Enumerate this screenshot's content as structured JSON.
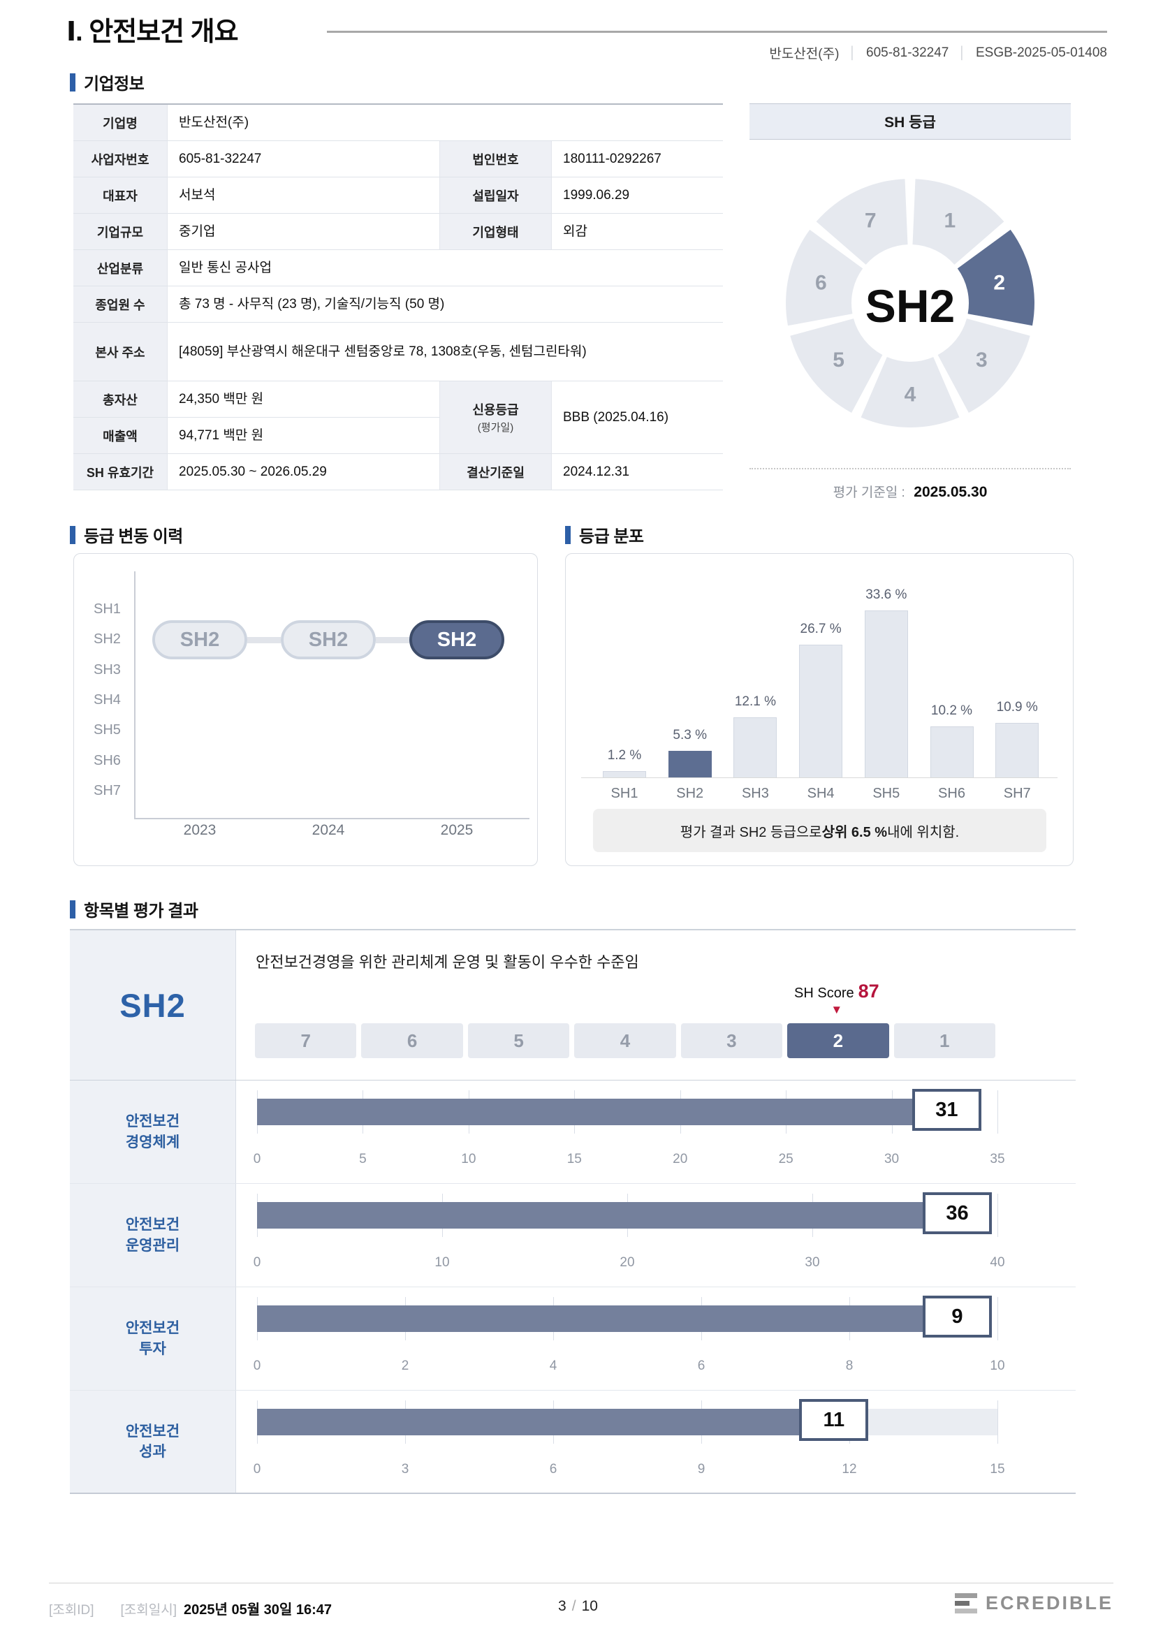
{
  "header": {
    "title": "Ⅰ. 안전보건 개요",
    "company": "반도산전(주)",
    "business_no": "605-81-32247",
    "report_code": "ESGB-2025-05-01408"
  },
  "colors": {
    "accent_blue": "#2d5fa7",
    "selected_slate": "#5d6e92",
    "bar_slate": "#74809c",
    "light_segment": "#e6e9ef",
    "score_red": "#b5143c",
    "label_cell_bg": "#eef1f6"
  },
  "company_info": {
    "section_title": "기업정보",
    "fields": {
      "company_name_label": "기업명",
      "company_name": "반도산전(주)",
      "biz_no_label": "사업자번호",
      "biz_no": "605-81-32247",
      "corp_no_label": "법인번호",
      "corp_no": "180111-0292267",
      "ceo_label": "대표자",
      "ceo": "서보석",
      "founded_label": "설립일자",
      "founded": "1999.06.29",
      "size_label": "기업규모",
      "size": "중기업",
      "type_label": "기업형태",
      "type": "외감",
      "industry_label": "산업분류",
      "industry": "일반 통신 공사업",
      "employees_label": "종업원 수",
      "employees": "총 73 명 -  사무직 (23 명), 기술직/기능직 (50 명)",
      "address_label": "본사 주소",
      "address": "[48059] 부산광역시 해운대구 센텀중앙로 78, 1308호(우동, 센텀그린타워)",
      "assets_label": "총자산",
      "assets": "24,350 백만 원",
      "revenue_label": "매출액",
      "revenue": "94,771 백만 원",
      "credit_label": "신용등급",
      "credit_sub_label": "(평가일)",
      "credit": "BBB (2025.04.16)",
      "validity_label": "SH 유효기간",
      "validity": "2025.05.30 ~ 2026.05.29",
      "fiscal_label": "결산기준일",
      "fiscal": "2024.12.31"
    }
  },
  "sh_grade_panel": {
    "title": "SH 등급",
    "center_label": "SH2",
    "selected": "2",
    "segments": [
      "1",
      "2",
      "3",
      "4",
      "5",
      "6",
      "7"
    ],
    "base_date_label": "평가 기준일 :",
    "base_date": "2025.05.30"
  },
  "history": {
    "section_title": "등급 변동 이력",
    "y_labels": [
      "SH1",
      "SH2",
      "SH3",
      "SH4",
      "SH5",
      "SH6",
      "SH7"
    ],
    "years": [
      "2023",
      "2024",
      "2025"
    ],
    "grades": [
      "SH2",
      "SH2",
      "SH2"
    ],
    "selected_index": 2
  },
  "distribution": {
    "section_title": "등급 분포",
    "categories": [
      "SH1",
      "SH2",
      "SH3",
      "SH4",
      "SH5",
      "SH6",
      "SH7"
    ],
    "values": [
      1.2,
      5.3,
      12.1,
      26.7,
      33.6,
      10.2,
      10.9
    ],
    "highlight": "SH2",
    "note_prefix": "평가 결과 SH2 등급으로 ",
    "note_bold": "상위 6.5 %",
    "note_suffix": " 내에 위치함."
  },
  "evaluation": {
    "section_title": "항목별 평가 결과",
    "grade": "SH2",
    "summary": "안전보건경영을 위한 관리체계 운영 및 활동이 우수한 수준임",
    "score_label": "SH Score",
    "score": "87",
    "scale": [
      "7",
      "6",
      "5",
      "4",
      "3",
      "2",
      "1"
    ],
    "selected": "2",
    "items": [
      {
        "label_line1": "안전보건",
        "label_line2": "경영체계",
        "value": 31,
        "max": 35,
        "ticks": [
          0,
          5,
          10,
          15,
          20,
          25,
          30,
          35
        ]
      },
      {
        "label_line1": "안전보건",
        "label_line2": "운영관리",
        "value": 36,
        "max": 40,
        "ticks": [
          0,
          10,
          20,
          30,
          40
        ]
      },
      {
        "label_line1": "안전보건",
        "label_line2": "투자",
        "value": 9,
        "max": 10,
        "ticks": [
          0,
          2,
          4,
          6,
          8,
          10
        ]
      },
      {
        "label_line1": "안전보건",
        "label_line2": "성과",
        "value": 11,
        "max": 15,
        "ticks": [
          0,
          3,
          6,
          9,
          12,
          15
        ]
      }
    ]
  },
  "footer": {
    "query_id_label": "[조회ID]",
    "query_time_label": "[조회일시]",
    "query_time": "2025년 05월 30일 16:47",
    "page_current": "3",
    "page_total": "10",
    "brand": "ECREDIBLE"
  },
  "chart_data": [
    {
      "type": "pie",
      "title": "SH 등급",
      "labels": [
        "1",
        "2",
        "3",
        "4",
        "5",
        "6",
        "7"
      ],
      "values": [
        1,
        1,
        1,
        1,
        1,
        1,
        1
      ],
      "highlight": "2",
      "center_label": "SH2",
      "note": "평가 기준일 : 2025.05.30"
    },
    {
      "type": "line",
      "title": "등급 변동 이력",
      "x": [
        "2023",
        "2024",
        "2025"
      ],
      "y": [
        "SH2",
        "SH2",
        "SH2"
      ],
      "y_axis": [
        "SH1",
        "SH2",
        "SH3",
        "SH4",
        "SH5",
        "SH6",
        "SH7"
      ],
      "highlight_x": "2025"
    },
    {
      "type": "bar",
      "title": "등급 분포",
      "categories": [
        "SH1",
        "SH2",
        "SH3",
        "SH4",
        "SH5",
        "SH6",
        "SH7"
      ],
      "values": [
        1.2,
        5.3,
        12.1,
        26.7,
        33.6,
        10.2,
        10.9
      ],
      "highlight": "SH2",
      "annotation": "평가 결과 SH2 등급으로 상위 6.5 % 내에 위치함."
    },
    {
      "type": "bar",
      "title": "항목별 평가 결과",
      "categories": [
        "안전보건 경영체계",
        "안전보건 운영관리",
        "안전보건 투자",
        "안전보건 성과"
      ],
      "values": [
        31,
        36,
        9,
        11
      ],
      "axis_max": [
        35,
        40,
        10,
        15
      ],
      "sh_score": 87
    }
  ]
}
